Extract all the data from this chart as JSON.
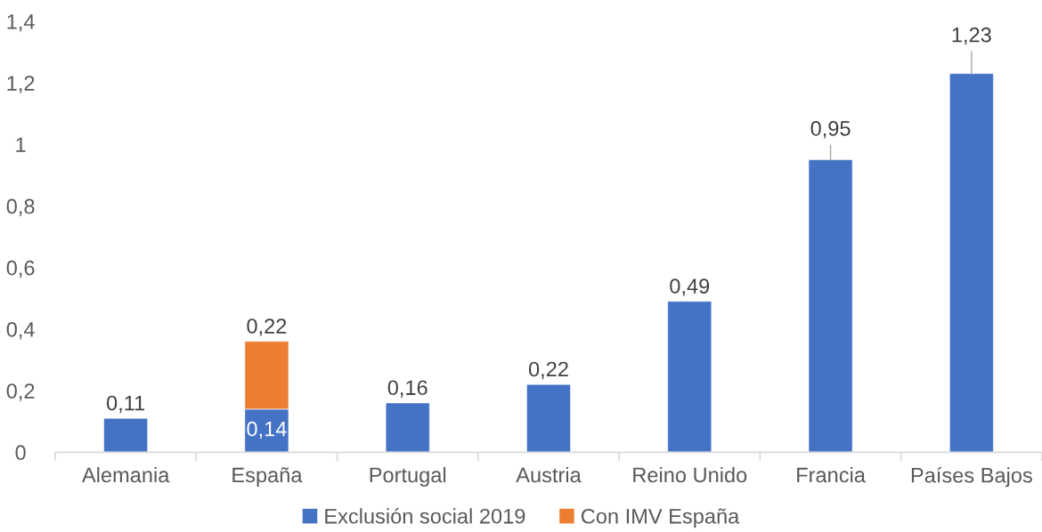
{
  "chart_data": {
    "type": "bar",
    "stacked": true,
    "categories": [
      "Alemania",
      "España",
      "Portugal",
      "Austria",
      "Reino Unido",
      "Francia",
      "Países Bajos"
    ],
    "series": [
      {
        "name": "Exclusión social 2019",
        "color": "#4472c4",
        "values": [
          0.11,
          0.14,
          0.16,
          0.22,
          0.49,
          0.95,
          1.23
        ],
        "value_labels": [
          "0,11",
          "0,14",
          "0,16",
          "0,22",
          "0,49",
          "0,95",
          "1,23"
        ]
      },
      {
        "name": "Con IMV España",
        "color": "#ed7d31",
        "values": [
          null,
          0.22,
          null,
          null,
          null,
          null,
          null
        ],
        "value_labels": [
          null,
          "0,22",
          null,
          null,
          null,
          null,
          null
        ]
      }
    ],
    "ylim": [
      0,
      1.4
    ],
    "yticks": [
      0,
      {
        "value": 0.2,
        "label": "0,2"
      },
      {
        "value": 0.4,
        "label": "0,4"
      },
      {
        "value": 0.6,
        "label": "0,6"
      },
      {
        "value": 0.8,
        "label": "0,8"
      },
      1,
      {
        "value": 1.2,
        "label": "1,2"
      },
      {
        "value": 1.4,
        "label": "1,4"
      }
    ],
    "grid": false,
    "legend": "bottom"
  }
}
